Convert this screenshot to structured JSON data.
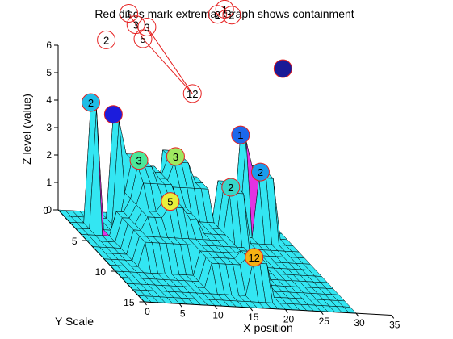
{
  "chart_data": {
    "type": "surface3d",
    "title": "Red discs mark extrema. Graph shows containment",
    "xlabel": "X position",
    "ylabel": "Y Scale",
    "zlabel": "Z level (value)",
    "xlim": [
      0,
      35
    ],
    "ylim": [
      0,
      15
    ],
    "zlim": [
      0,
      6
    ],
    "x_ticks": [
      "0",
      "5",
      "10",
      "15",
      "20",
      "25",
      "30",
      "35"
    ],
    "y_ticks": [
      "0",
      "5",
      "10",
      "15"
    ],
    "z_ticks": [
      "0",
      "1",
      "2",
      "3",
      "4",
      "5",
      "6"
    ],
    "surface_colors": {
      "face": "#33e6f2",
      "edge": "#000000",
      "spike": "#e233e2"
    },
    "marker_color": "#e62020",
    "extrema": [
      {
        "label": "2",
        "x": 3,
        "y": 2,
        "z": 4.4,
        "color": "#1fbce6"
      },
      {
        "label": "",
        "x": 7,
        "y": 1,
        "z": 3.8,
        "color": "#1c1cdc"
      },
      {
        "label": "3",
        "x": 9,
        "y": 3,
        "z": 2.6,
        "color": "#4be89a"
      },
      {
        "label": "5",
        "x": 11,
        "y": 6,
        "z": 1.8,
        "color": "#e8ef3c"
      },
      {
        "label": "3",
        "x": 15,
        "y": 2,
        "z": 2.6,
        "color": "#9ee860"
      },
      {
        "label": "12",
        "x": 18,
        "y": 12,
        "z": 1.2,
        "color": "#f5b214"
      },
      {
        "label": "2",
        "x": 22,
        "y": 3,
        "z": 1.8,
        "color": "#36d7c9"
      },
      {
        "label": "1",
        "x": 25,
        "y": 1,
        "z": 3.3,
        "color": "#1c68ec"
      },
      {
        "label": "2",
        "x": 27,
        "y": 2,
        "z": 2.2,
        "color": "#1a9ced"
      },
      {
        "label": "",
        "x": 31,
        "y": 1,
        "z": 5.8,
        "color": "#1a1a96"
      }
    ],
    "graph_nodes": [
      {
        "label": "2",
        "x": 6,
        "y": 1,
        "z": 6.5
      },
      {
        "label": "1",
        "x": 10,
        "y": 0,
        "z": 7.3
      },
      {
        "label": "3",
        "x": 11,
        "y": 0,
        "z": 6.9
      },
      {
        "label": "5",
        "x": 12,
        "y": 0,
        "z": 6.4
      },
      {
        "label": "3",
        "x": 15,
        "y": -3,
        "z": 6.2
      },
      {
        "label": "12",
        "x": 19,
        "y": 0,
        "z": 4.5
      },
      {
        "label": "2",
        "x": 25,
        "y": -3,
        "z": 6.8
      },
      {
        "label": "1",
        "x": 26,
        "y": -3,
        "z": 7.0
      },
      {
        "label": "2",
        "x": 27,
        "y": -3,
        "z": 6.8
      }
    ],
    "graph_edges": [
      [
        1,
        2
      ],
      [
        2,
        3
      ],
      [
        3,
        5
      ],
      [
        4,
        5
      ],
      [
        6,
        7
      ]
    ]
  }
}
